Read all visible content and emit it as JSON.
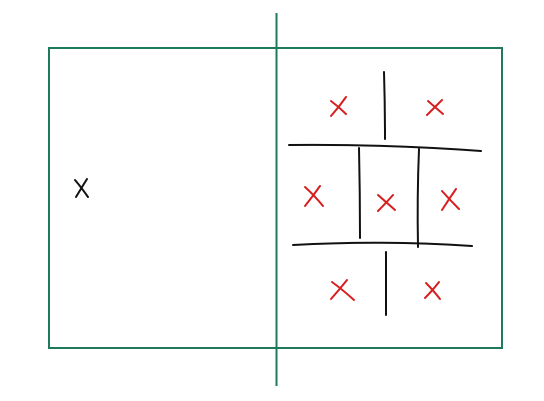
{
  "colors": {
    "frame": "#1f7a5c",
    "ink": "#111111",
    "mark": "#d61f1f"
  },
  "diagram": {
    "left_panel": {
      "marks": [
        "x-mark"
      ]
    },
    "right_panel": {
      "marks": [
        "x-mark",
        "x-mark",
        "x-mark",
        "x-mark",
        "x-mark",
        "x-mark",
        "x-mark"
      ]
    }
  }
}
